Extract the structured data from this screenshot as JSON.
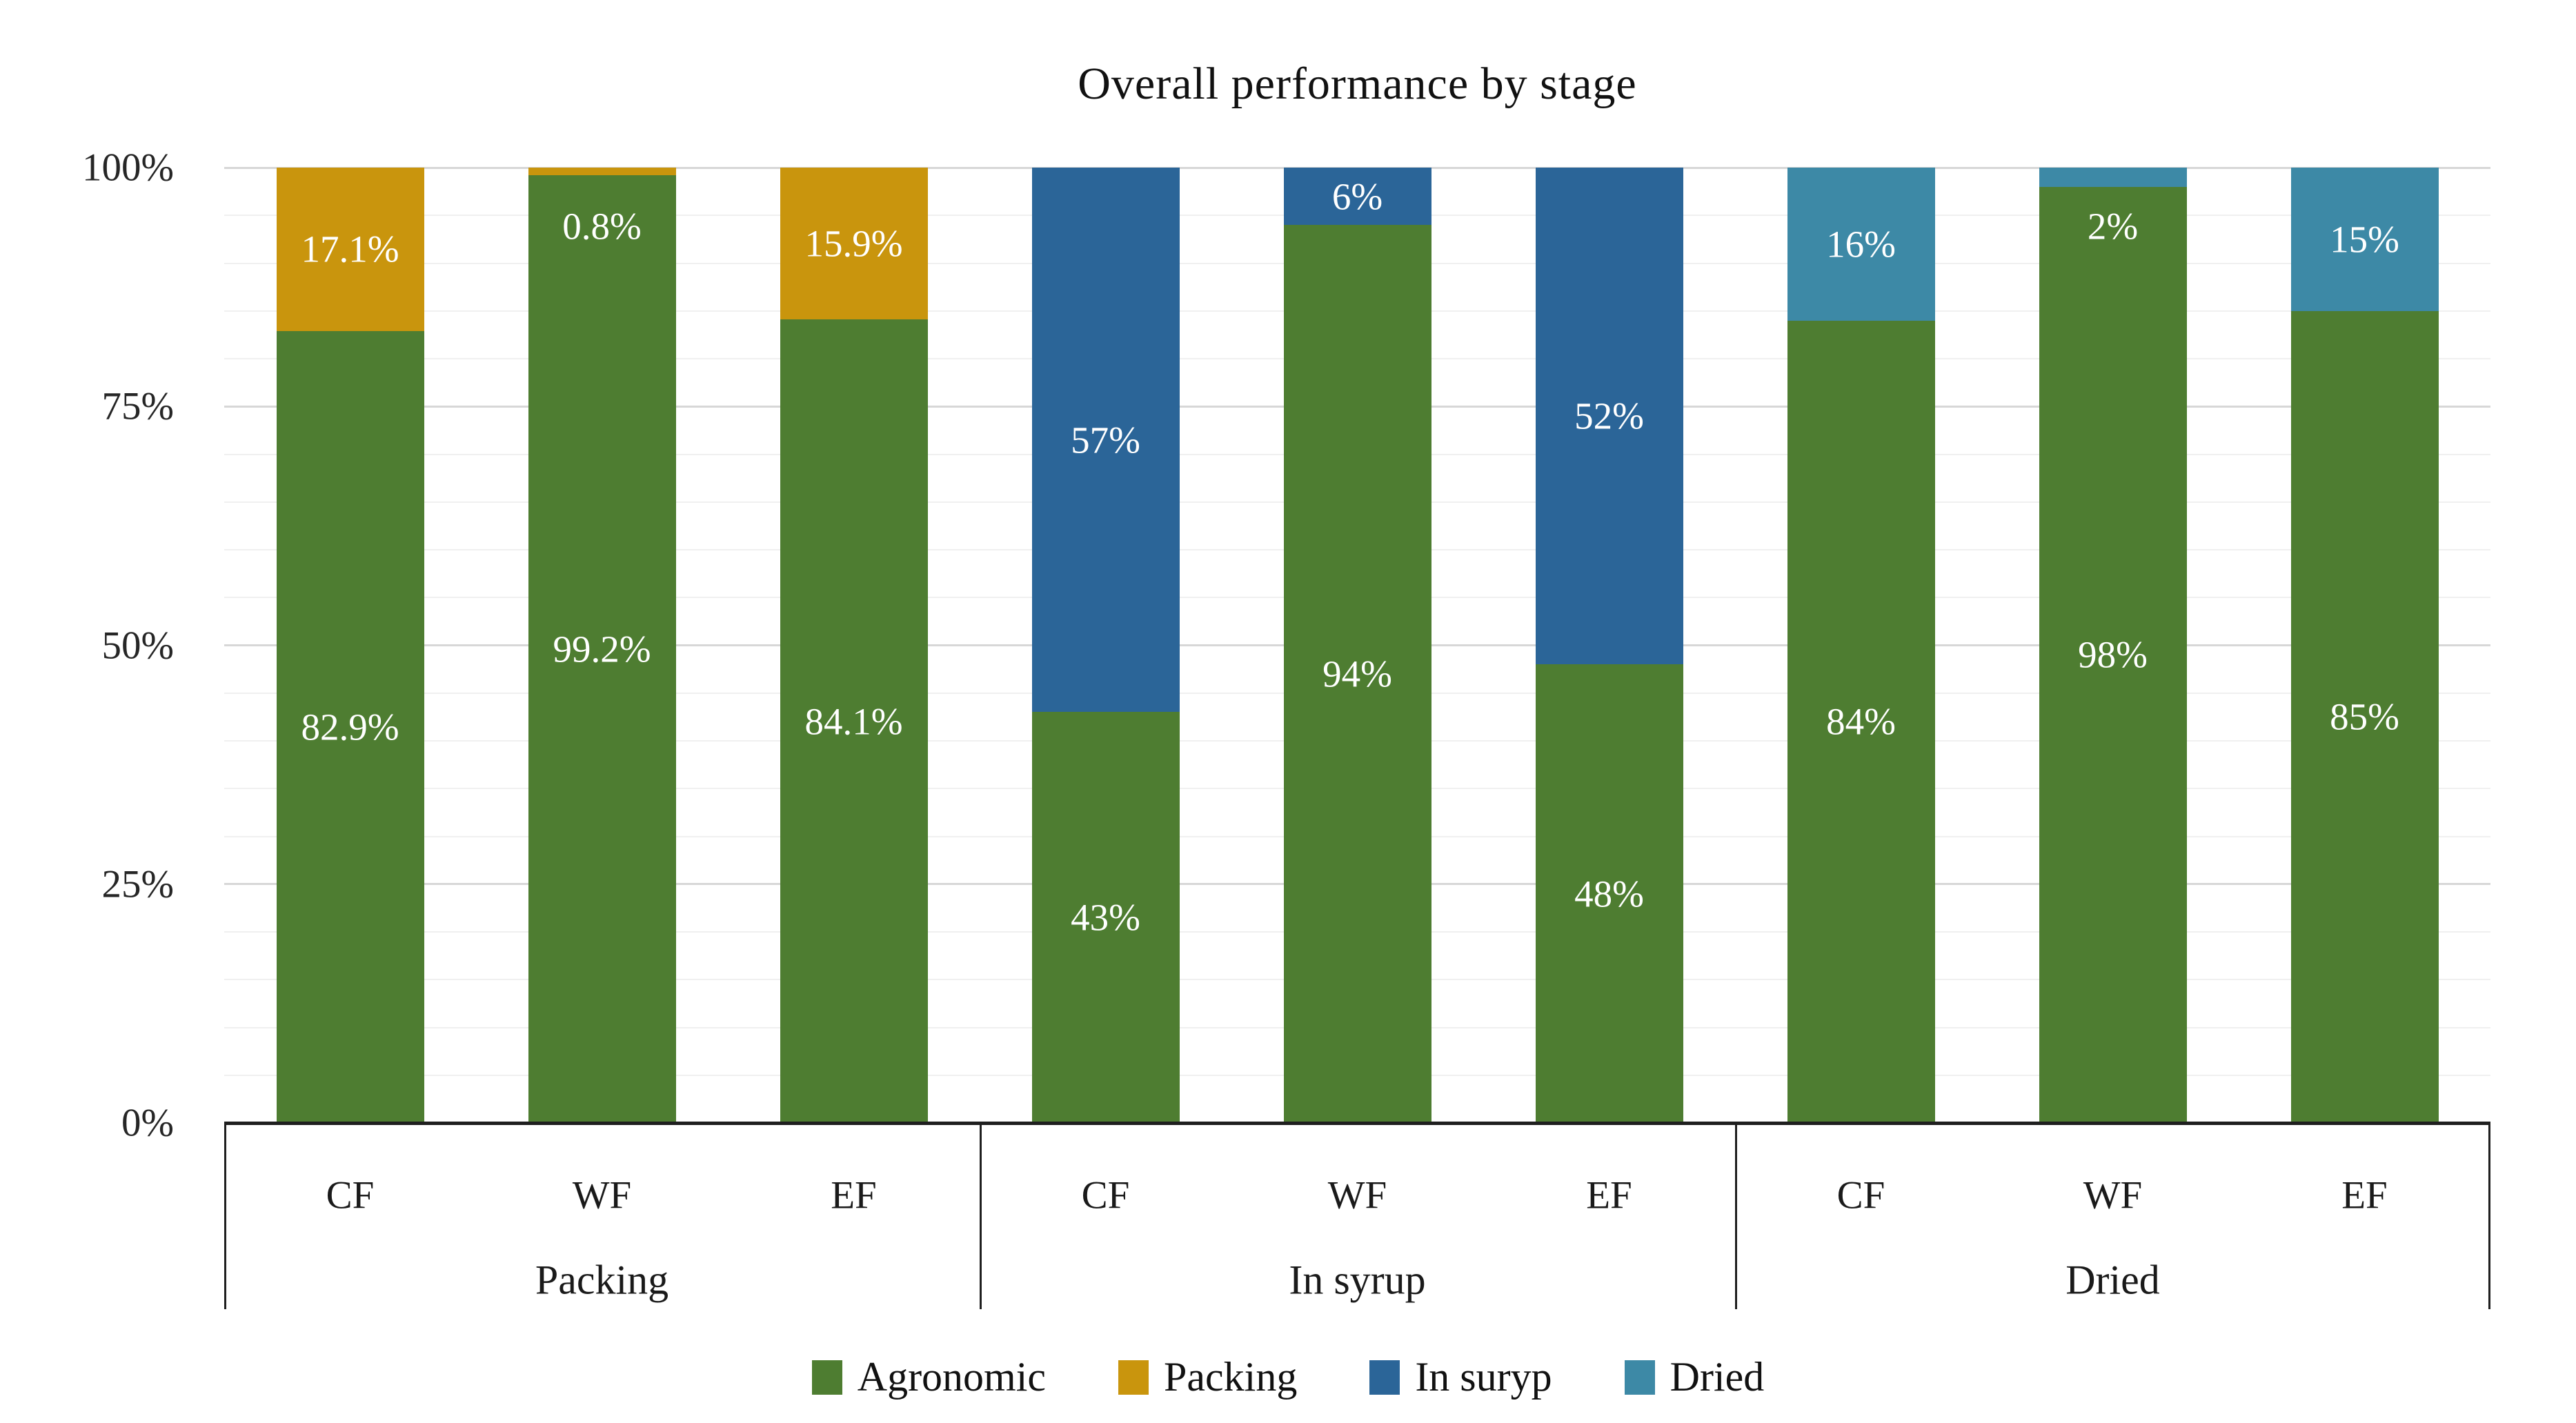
{
  "chart_data": {
    "type": "bar",
    "subtype": "stacked-100-percent",
    "title": "Overall performance by stage",
    "xlabel": "",
    "ylabel": "",
    "ylim": [
      0,
      100
    ],
    "y_axis": {
      "ticks": [
        "0%",
        "25%",
        "50%",
        "75%",
        "100%"
      ],
      "minor_gridline_step_percent": 5,
      "major_gridline_step_percent": 25,
      "grid": true
    },
    "legend_position": "bottom",
    "legend": [
      {
        "label": "Agronomic",
        "color": "#4e7d31"
      },
      {
        "label": "Packing",
        "color": "#c9950d"
      },
      {
        "label": "In suryp",
        "color": "#2b6598"
      },
      {
        "label": "Dried",
        "color": "#3d89a6"
      }
    ],
    "groups": [
      {
        "label": "Packing",
        "bars": [
          {
            "label": "CF",
            "segments": [
              {
                "series": "Agronomic",
                "value": 82.9,
                "text": "82.9%"
              },
              {
                "series": "Packing",
                "value": 17.1,
                "text": "17.1%"
              }
            ]
          },
          {
            "label": "WF",
            "segments": [
              {
                "series": "Agronomic",
                "value": 99.2,
                "text": "99.2%"
              },
              {
                "series": "Packing",
                "value": 0.8,
                "text": "0.8%"
              }
            ]
          },
          {
            "label": "EF",
            "segments": [
              {
                "series": "Agronomic",
                "value": 84.1,
                "text": "84.1%"
              },
              {
                "series": "Packing",
                "value": 15.9,
                "text": "15.9%"
              }
            ]
          }
        ]
      },
      {
        "label": "In syrup",
        "bars": [
          {
            "label": "CF",
            "segments": [
              {
                "series": "Agronomic",
                "value": 43,
                "text": "43%"
              },
              {
                "series": "In suryp",
                "value": 57,
                "text": "57%"
              }
            ]
          },
          {
            "label": "WF",
            "segments": [
              {
                "series": "Agronomic",
                "value": 94,
                "text": "94%"
              },
              {
                "series": "In suryp",
                "value": 6,
                "text": "6%"
              }
            ]
          },
          {
            "label": "EF",
            "segments": [
              {
                "series": "Agronomic",
                "value": 48,
                "text": "48%"
              },
              {
                "series": "In suryp",
                "value": 52,
                "text": "52%"
              }
            ]
          }
        ]
      },
      {
        "label": "Dried",
        "bars": [
          {
            "label": "CF",
            "segments": [
              {
                "series": "Agronomic",
                "value": 84,
                "text": "84%"
              },
              {
                "series": "Dried",
                "value": 16,
                "text": "16%"
              }
            ]
          },
          {
            "label": "WF",
            "segments": [
              {
                "series": "Agronomic",
                "value": 98,
                "text": "98%"
              },
              {
                "series": "Dried",
                "value": 2,
                "text": "2%"
              }
            ]
          },
          {
            "label": "EF",
            "segments": [
              {
                "series": "Agronomic",
                "value": 85,
                "text": "85%"
              },
              {
                "series": "Dried",
                "value": 15,
                "text": "15%"
              }
            ]
          }
        ]
      }
    ]
  }
}
